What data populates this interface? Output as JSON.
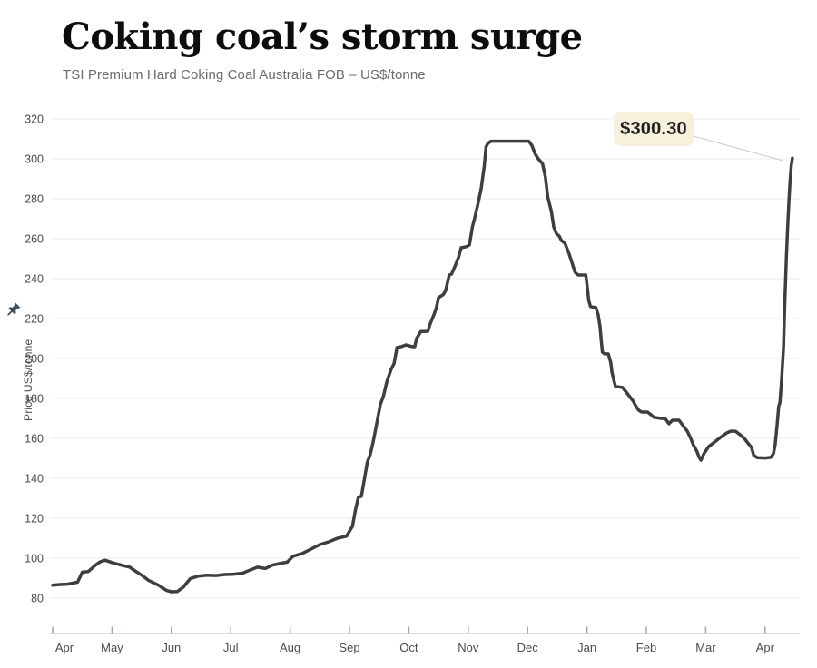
{
  "header": {
    "title": "Coking coal’s storm surge",
    "subtitle": "TSI Premium Hard Coking Coal Australia FOB – US$/tonne"
  },
  "annotation": {
    "label": "$300.30"
  },
  "icons": {
    "y_axis_marker": "pushpin-icon"
  },
  "colors": {
    "line": "#3e3e3e",
    "grid": "#ececec",
    "baseline": "#dcdcdc",
    "tick": "#aaa49b",
    "axis_text": "#4a4a4a",
    "leader": "#cccccc",
    "tooltip_bg": "#f7f0dc",
    "tooltip_text": "#1f1f1f",
    "pin": "#3e4f5e"
  },
  "chart_data": {
    "type": "line",
    "title": "Coking coal’s storm surge",
    "subtitle": "TSI Premium Hard Coking Coal Australia FOB – US$/tonne",
    "xlabel": "",
    "ylabel": "Price US$/tonne",
    "ylim": [
      80,
      320
    ],
    "grid": "horizontal",
    "legend": "none",
    "y_ticks": [
      320,
      300,
      280,
      260,
      240,
      220,
      200,
      180,
      160,
      140,
      120,
      100,
      80
    ],
    "x_tick_labels": [
      "Apr",
      "May",
      "Jun",
      "Jul",
      "Aug",
      "Sep",
      "Oct",
      "Nov",
      "Dec",
      "Jan",
      "Feb",
      "Mar",
      "Apr"
    ],
    "last_value_label": "$300.30",
    "series": [
      {
        "name": "TSI Premium Hard Coking Coal Australia FOB (US$/tonne)",
        "x_unit": "months since 1 Apr 2016",
        "points": [
          [
            0,
            86.5
          ],
          [
            0.12,
            86.8
          ],
          [
            0.25,
            87
          ],
          [
            0.42,
            88
          ],
          [
            0.5,
            93
          ],
          [
            0.6,
            93.3
          ],
          [
            0.72,
            96.5
          ],
          [
            0.8,
            98.2
          ],
          [
            0.88,
            99
          ],
          [
            1.0,
            97.8
          ],
          [
            1.12,
            96.8
          ],
          [
            1.3,
            95.5
          ],
          [
            1.42,
            93
          ],
          [
            1.5,
            91.5
          ],
          [
            1.62,
            88.8
          ],
          [
            1.78,
            86.5
          ],
          [
            1.92,
            83.8
          ],
          [
            2.0,
            83.2
          ],
          [
            2.1,
            83.3
          ],
          [
            2.2,
            85.5
          ],
          [
            2.32,
            89.8
          ],
          [
            2.45,
            91
          ],
          [
            2.6,
            91.5
          ],
          [
            2.75,
            91.3
          ],
          [
            2.9,
            91.8
          ],
          [
            3.05,
            92
          ],
          [
            3.2,
            92.5
          ],
          [
            3.32,
            94
          ],
          [
            3.45,
            95.5
          ],
          [
            3.58,
            94.8
          ],
          [
            3.7,
            96.5
          ],
          [
            3.85,
            97.5
          ],
          [
            3.95,
            98
          ],
          [
            4.05,
            101
          ],
          [
            4.2,
            102.3
          ],
          [
            4.35,
            104.5
          ],
          [
            4.5,
            106.8
          ],
          [
            4.65,
            108.2
          ],
          [
            4.8,
            110
          ],
          [
            4.95,
            111
          ],
          [
            5.05,
            116
          ],
          [
            5.1,
            124
          ],
          [
            5.15,
            130.5
          ],
          [
            5.2,
            131
          ],
          [
            5.25,
            139.5
          ],
          [
            5.3,
            148
          ],
          [
            5.35,
            152
          ],
          [
            5.4,
            158.5
          ],
          [
            5.45,
            166
          ],
          [
            5.52,
            177
          ],
          [
            5.57,
            181
          ],
          [
            5.63,
            188.5
          ],
          [
            5.7,
            194.5
          ],
          [
            5.75,
            197.5
          ],
          [
            5.8,
            205.5
          ],
          [
            5.88,
            206
          ],
          [
            5.95,
            206.8
          ],
          [
            6.05,
            206
          ],
          [
            6.1,
            205.9
          ],
          [
            6.13,
            210
          ],
          [
            6.2,
            213.5
          ],
          [
            6.32,
            213.6
          ],
          [
            6.36,
            217.3
          ],
          [
            6.42,
            221.8
          ],
          [
            6.46,
            225
          ],
          [
            6.5,
            230.5
          ],
          [
            6.58,
            232
          ],
          [
            6.62,
            234
          ],
          [
            6.68,
            241.8
          ],
          [
            6.72,
            242.3
          ],
          [
            6.78,
            246.4
          ],
          [
            6.84,
            250.9
          ],
          [
            6.88,
            255.5
          ],
          [
            6.96,
            255.9
          ],
          [
            7.02,
            256.8
          ],
          [
            7.07,
            265.9
          ],
          [
            7.11,
            270.5
          ],
          [
            7.17,
            278.2
          ],
          [
            7.22,
            285.5
          ],
          [
            7.27,
            296.4
          ],
          [
            7.3,
            305.9
          ],
          [
            7.33,
            307.7
          ],
          [
            7.38,
            308.8
          ],
          [
            7.6,
            308.8
          ],
          [
            7.8,
            308.8
          ],
          [
            8.02,
            308.8
          ],
          [
            8.07,
            306.8
          ],
          [
            8.13,
            302.3
          ],
          [
            8.18,
            300
          ],
          [
            8.22,
            298.6
          ],
          [
            8.25,
            297.7
          ],
          [
            8.3,
            290.9
          ],
          [
            8.34,
            280.9
          ],
          [
            8.37,
            277.3
          ],
          [
            8.4,
            273.6
          ],
          [
            8.44,
            265.9
          ],
          [
            8.49,
            262.3
          ],
          [
            8.53,
            261.4
          ],
          [
            8.57,
            259.1
          ],
          [
            8.63,
            257.7
          ],
          [
            8.7,
            252.3
          ],
          [
            8.75,
            247.7
          ],
          [
            8.8,
            243.2
          ],
          [
            8.85,
            241.8
          ],
          [
            8.98,
            241.8
          ],
          [
            9.0,
            237
          ],
          [
            9.03,
            229
          ],
          [
            9.06,
            226
          ],
          [
            9.15,
            225.5
          ],
          [
            9.19,
            221.8
          ],
          [
            9.22,
            215.9
          ],
          [
            9.24,
            209.1
          ],
          [
            9.26,
            203.2
          ],
          [
            9.3,
            202.3
          ],
          [
            9.36,
            202.3
          ],
          [
            9.4,
            198
          ],
          [
            9.42,
            193.2
          ],
          [
            9.45,
            189.5
          ],
          [
            9.48,
            186
          ],
          [
            9.6,
            185.5
          ],
          [
            9.66,
            183.2
          ],
          [
            9.72,
            180.9
          ],
          [
            9.78,
            178.6
          ],
          [
            9.82,
            176.4
          ],
          [
            9.87,
            174.1
          ],
          [
            9.92,
            173.2
          ],
          [
            10.02,
            173.2
          ],
          [
            10.08,
            171.8
          ],
          [
            10.13,
            170.5
          ],
          [
            10.25,
            170
          ],
          [
            10.32,
            169.8
          ],
          [
            10.38,
            167.3
          ],
          [
            10.44,
            169.1
          ],
          [
            10.55,
            169.1
          ],
          [
            10.63,
            165.9
          ],
          [
            10.69,
            163.6
          ],
          [
            10.74,
            160.5
          ],
          [
            10.79,
            156.8
          ],
          [
            10.85,
            153.6
          ],
          [
            10.89,
            150.5
          ],
          [
            10.92,
            149.1
          ],
          [
            10.97,
            152.3
          ],
          [
            11.05,
            155.9
          ],
          [
            11.15,
            158.2
          ],
          [
            11.25,
            160.5
          ],
          [
            11.35,
            162.7
          ],
          [
            11.42,
            163.6
          ],
          [
            11.5,
            163.6
          ],
          [
            11.56,
            162.3
          ],
          [
            11.65,
            160
          ],
          [
            11.71,
            157.7
          ],
          [
            11.77,
            155.5
          ],
          [
            11.81,
            151.4
          ],
          [
            11.87,
            150.3
          ],
          [
            12.0,
            150.2
          ],
          [
            12.1,
            150.5
          ],
          [
            12.14,
            152.3
          ],
          [
            12.17,
            156.8
          ],
          [
            12.2,
            165.9
          ],
          [
            12.23,
            176
          ],
          [
            12.25,
            178
          ],
          [
            12.28,
            190
          ],
          [
            12.31,
            205.5
          ],
          [
            12.33,
            226.4
          ],
          [
            12.36,
            250.9
          ],
          [
            12.38,
            266
          ],
          [
            12.4,
            278.2
          ],
          [
            12.42,
            288.6
          ],
          [
            12.44,
            296.4
          ],
          [
            12.46,
            300.3
          ]
        ]
      }
    ]
  }
}
